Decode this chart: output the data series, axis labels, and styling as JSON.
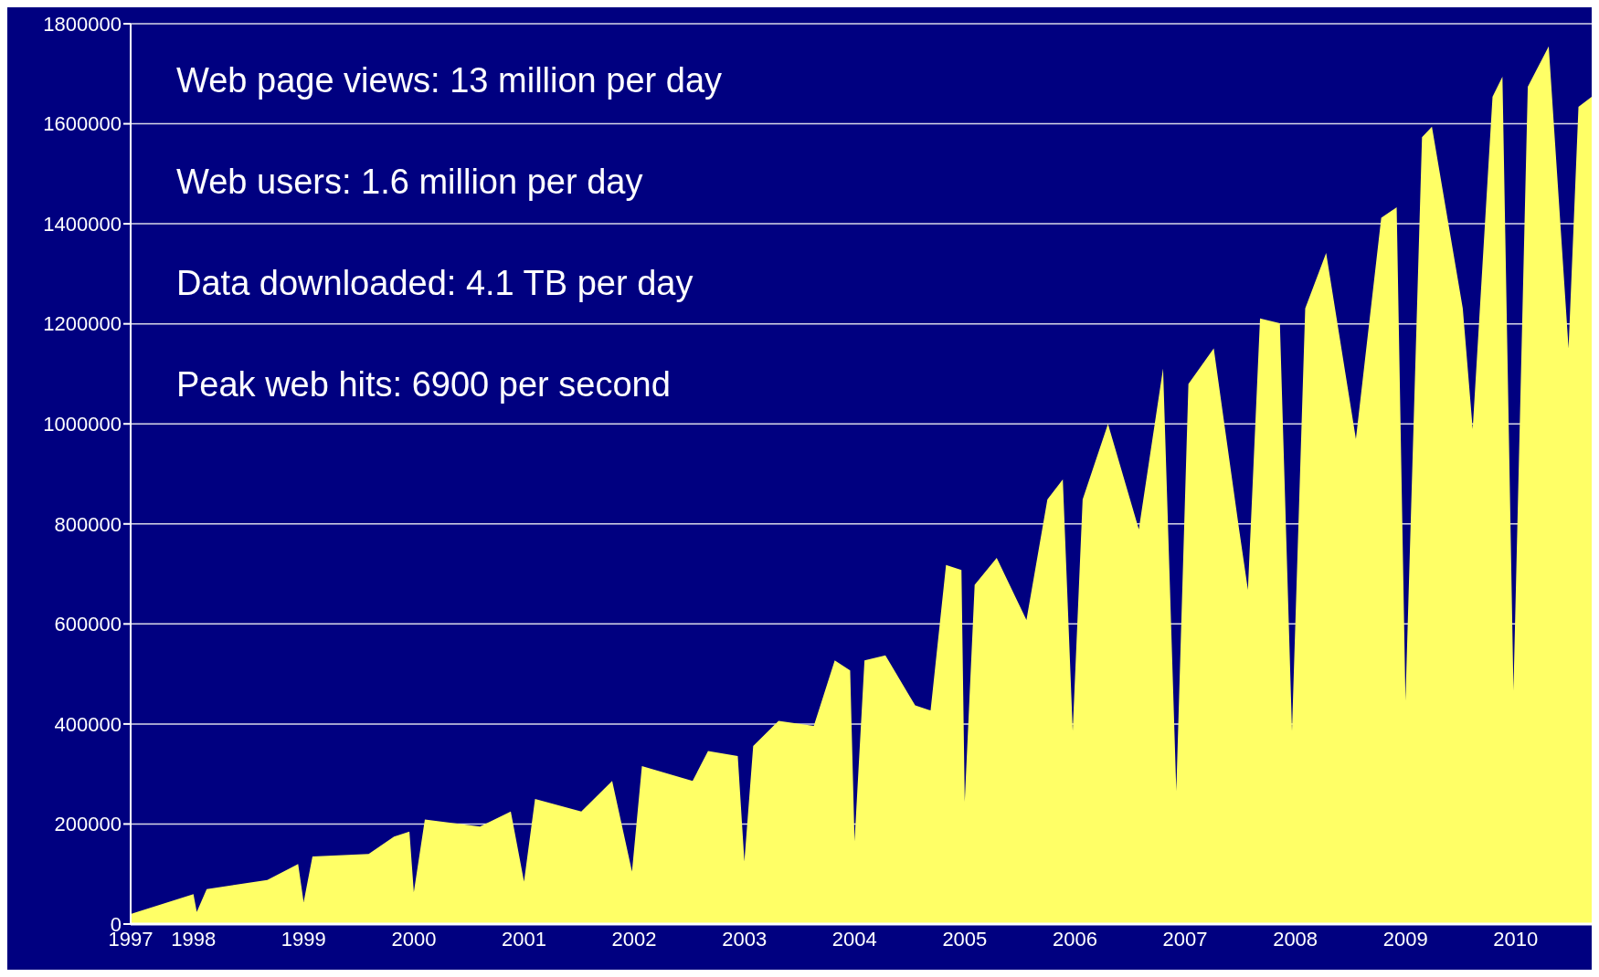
{
  "chart_data": {
    "type": "area",
    "x": [
      1997.43,
      1998.0,
      1998.03,
      1998.12,
      1998.67,
      1998.95,
      1999.0,
      1999.08,
      1999.59,
      1999.82,
      1999.96,
      2000.0,
      2000.1,
      2000.6,
      2000.88,
      2001.0,
      2001.1,
      2001.52,
      2001.8,
      2001.98,
      2002.07,
      2002.53,
      2002.67,
      2002.94,
      2003.0,
      2003.08,
      2003.31,
      2003.63,
      2003.82,
      2003.96,
      2004.0,
      2004.09,
      2004.28,
      2004.55,
      2004.69,
      2004.83,
      2004.97,
      2005.0,
      2005.09,
      2005.29,
      2005.56,
      2005.75,
      2005.89,
      2005.98,
      2006.07,
      2006.3,
      2006.58,
      2006.8,
      2006.92,
      2007.03,
      2007.26,
      2007.49,
      2007.57,
      2007.68,
      2007.86,
      2007.97,
      2008.09,
      2008.28,
      2008.55,
      2008.78,
      2008.92,
      2009.0,
      2009.15,
      2009.24,
      2009.52,
      2009.61,
      2009.79,
      2009.88,
      2009.98,
      2010.11,
      2010.3,
      2010.48,
      2010.57,
      2010.69
    ],
    "series": [
      {
        "color": "#ffff66",
        "values": [
          20000,
          60000,
          24000,
          70000,
          88000,
          120000,
          44000,
          135000,
          140000,
          175000,
          185000,
          64000,
          209000,
          195000,
          225000,
          85000,
          250000,
          225000,
          286000,
          105000,
          316000,
          286000,
          346000,
          336000,
          125000,
          356000,
          406000,
          396000,
          527000,
          507000,
          165000,
          527000,
          537000,
          437000,
          427000,
          718000,
          708000,
          245000,
          678000,
          732000,
          608000,
          849000,
          889000,
          386000,
          849000,
          1000000,
          789000,
          1111000,
          266000,
          1080000,
          1151000,
          789000,
          668000,
          1211000,
          1201000,
          386000,
          1231000,
          1342000,
          970000,
          1412000,
          1433000,
          447000,
          1573000,
          1594000,
          1231000,
          990000,
          1654000,
          1694000,
          467000,
          1674000,
          1755000,
          1151000,
          1634000,
          1654000
        ]
      }
    ],
    "xlim": [
      1997.43,
      2010.69
    ],
    "xticks": [
      {
        "value": 1997.43,
        "label": "1997"
      },
      1998,
      1999,
      2000,
      2001,
      2002,
      2003,
      2004,
      2005,
      2006,
      2007,
      2008,
      2009,
      2010
    ],
    "ylim": [
      0,
      1800000
    ],
    "yticks": [
      0,
      200000,
      400000,
      600000,
      800000,
      1000000,
      1200000,
      1400000,
      1600000,
      1800000
    ],
    "grid": "y",
    "annotations": [
      "Web page views: 13 million per day",
      "Web users: 1.6 million per day",
      "Data downloaded: 4.1 TB per day",
      "Peak web hits: 6900 per second"
    ]
  }
}
